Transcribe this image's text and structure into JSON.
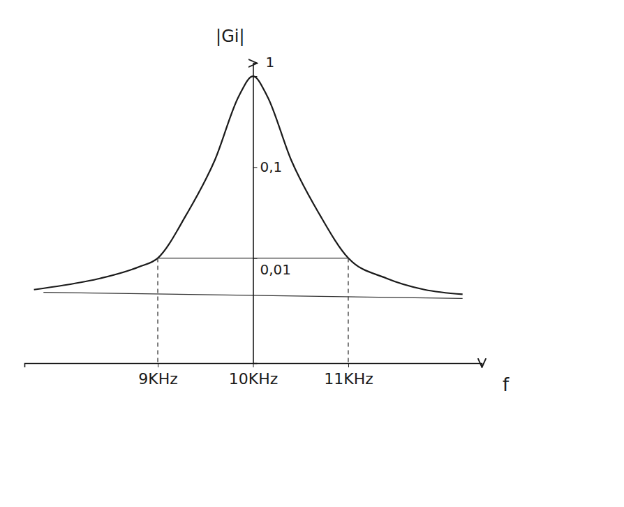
{
  "chart_data": {
    "type": "line",
    "x_label": "f",
    "y_label": "|Gi|",
    "xlim": [
      7.6,
      12.4
    ],
    "xticks": [
      {
        "value": 9,
        "label": "9KHz"
      },
      {
        "value": 10,
        "label": "10KHz"
      },
      {
        "value": 11,
        "label": "11KHz"
      }
    ],
    "ylim": [
      0.0007,
      1.4
    ],
    "yticks": [
      1,
      {
        "value": 0.1,
        "label": "0,1"
      },
      {
        "value": 0.01,
        "label": "0,01"
      }
    ],
    "log": "y",
    "grid": false,
    "series": [
      {
        "color": "#1a1a1a",
        "line_style": "solid",
        "x": [
          7.7,
          8.0,
          8.4,
          8.8,
          9.0,
          9.3,
          9.6,
          9.85,
          10.0,
          10.15,
          10.4,
          10.7,
          11.0,
          11.4,
          11.8,
          12.2
        ],
        "values": [
          0.0045,
          0.005,
          0.006,
          0.008,
          0.01,
          0.03,
          0.12,
          0.6,
          1,
          0.6,
          0.12,
          0.03,
          0.01,
          0.006,
          0.0045,
          0.004
        ]
      },
      {
        "color": "#333333",
        "line_style": "solid",
        "x": [
          9,
          11
        ],
        "values": [
          0.01,
          0.01
        ]
      },
      {
        "color": "#333333",
        "line_style": "solid",
        "x": [
          7.8,
          12.2
        ],
        "values": [
          0.0042,
          0.0036
        ]
      },
      {
        "color": "#333333",
        "line_style": "dashed",
        "x": [
          9,
          9
        ],
        "values": [
          0.01,
          0.0007
        ]
      },
      {
        "color": "#333333",
        "line_style": "dashed",
        "x": [
          11,
          11
        ],
        "values": [
          0.01,
          0.0007
        ]
      }
    ]
  }
}
